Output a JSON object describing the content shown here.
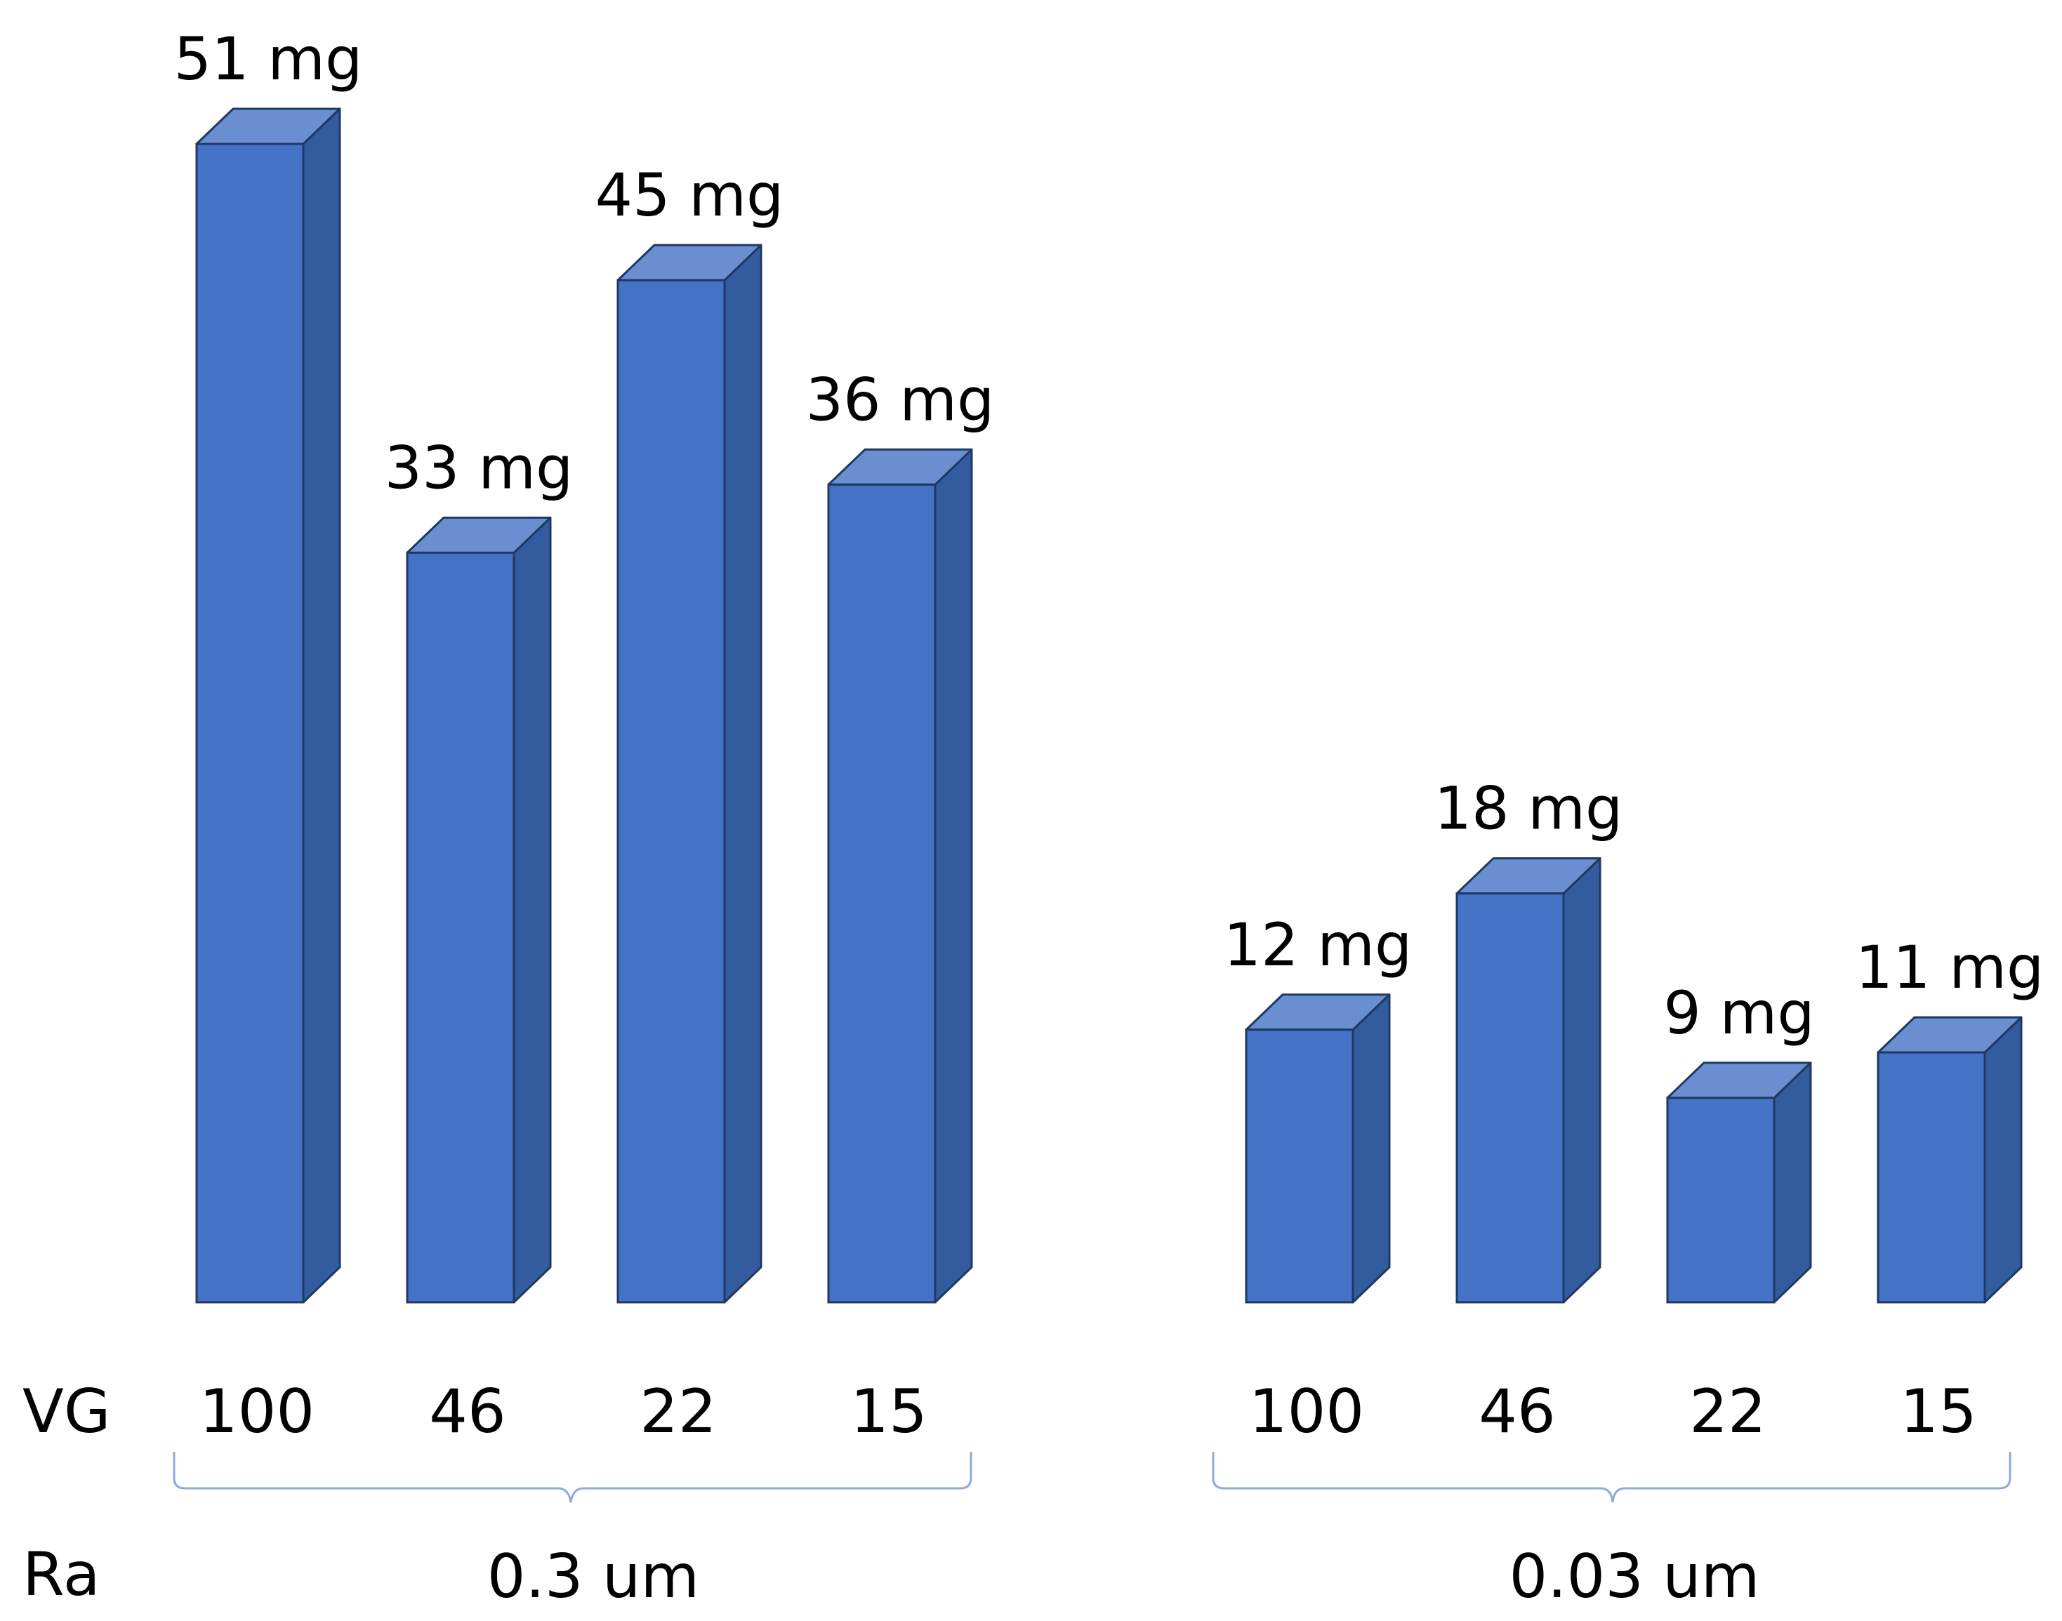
{
  "chart_data": {
    "type": "bar",
    "style": "3d-column",
    "unit": "mg",
    "row_labels": {
      "vg": "VG",
      "ra": "Ra"
    },
    "groups": [
      {
        "ra_label": "0.3 um",
        "bars": [
          {
            "vg": "100",
            "value": 51,
            "label": "51 mg"
          },
          {
            "vg": "46",
            "value": 33,
            "label": "33 mg"
          },
          {
            "vg": "22",
            "value": 45,
            "label": "45 mg"
          },
          {
            "vg": "15",
            "value": 36,
            "label": "36 mg"
          }
        ]
      },
      {
        "ra_label": "0.03 um",
        "bars": [
          {
            "vg": "100",
            "value": 12,
            "label": "12 mg"
          },
          {
            "vg": "46",
            "value": 18,
            "label": "18 mg"
          },
          {
            "vg": "22",
            "value": 9,
            "label": "9 mg"
          },
          {
            "vg": "15",
            "value": 11,
            "label": "11 mg"
          }
        ]
      }
    ],
    "ylim": [
      0,
      51
    ],
    "colors": {
      "front": "#4472C4",
      "top": "#6A8FD0",
      "side": "#335C9E",
      "edge": "#1F3864",
      "brace": "#8FAADC"
    }
  }
}
